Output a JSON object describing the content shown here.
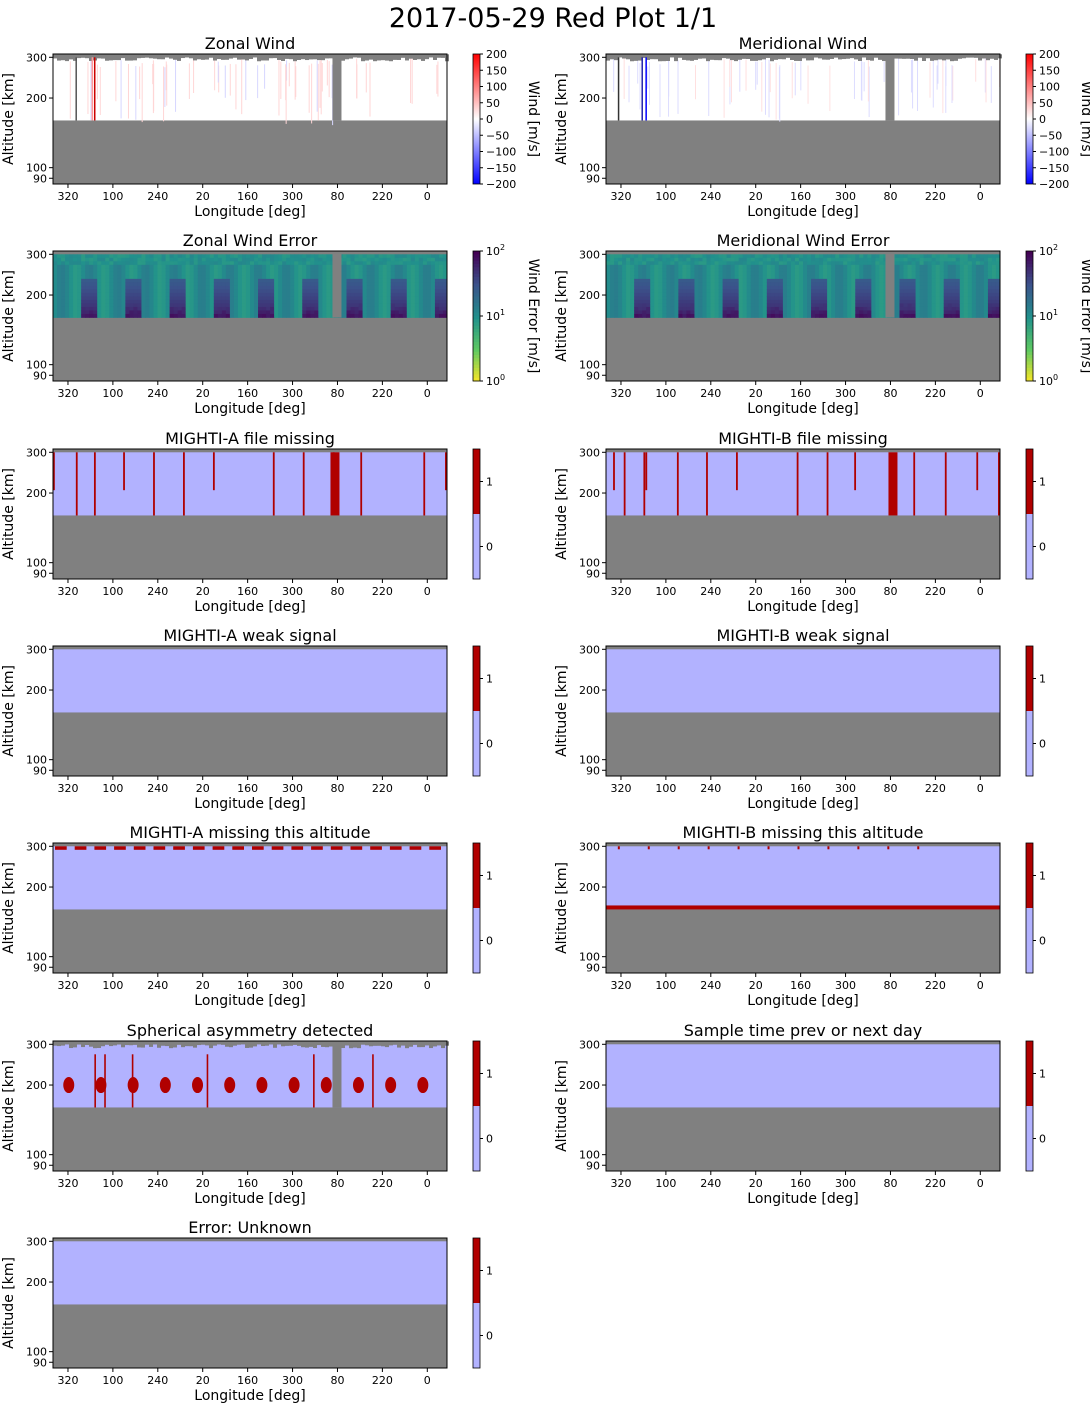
{
  "title": "2017-05-29 Red Plot 1/1",
  "colors": {
    "background_gray": "#808080",
    "flag_zero": "#b2b2ff",
    "flag_one": "#b00000",
    "wind_positive": "#ff0000",
    "wind_negative": "#0000ff",
    "wind_zero": "#ffffff"
  },
  "chart_data": [
    {
      "type": "heatmap",
      "title": "Zonal Wind",
      "xlabel": "Longitude [deg]",
      "ylabel": "Altitude [km]",
      "x_ticks": [
        "320",
        "100",
        "240",
        "20",
        "160",
        "300",
        "80",
        "220",
        "0"
      ],
      "y_ticks": [
        "300",
        "200",
        "100",
        "90"
      ],
      "ylim": [
        85,
        310
      ],
      "yscale": "log",
      "colorbar": {
        "label": "Wind [m/s]",
        "ticks": [
          "200",
          "150",
          "100",
          "50",
          "0",
          "−50",
          "−100",
          "−150",
          "−200"
        ],
        "range": [
          -200,
          200
        ],
        "colormap": "bwr"
      },
      "data_altitude_range": [
        160,
        300
      ],
      "data_gap_longitude": 80
    },
    {
      "type": "heatmap",
      "title": "Meridional Wind",
      "xlabel": "Longitude [deg]",
      "ylabel": "Altitude [km]",
      "x_ticks": [
        "320",
        "100",
        "240",
        "20",
        "160",
        "300",
        "80",
        "220",
        "0"
      ],
      "y_ticks": [
        "300",
        "200",
        "100",
        "90"
      ],
      "ylim": [
        85,
        310
      ],
      "yscale": "log",
      "colorbar": {
        "label": "Wind [m/s]",
        "ticks": [
          "200",
          "150",
          "100",
          "50",
          "0",
          "−50",
          "−100",
          "−150",
          "−200"
        ],
        "range": [
          -200,
          200
        ],
        "colormap": "bwr"
      },
      "data_altitude_range": [
        160,
        300
      ],
      "data_gap_longitude": 80
    },
    {
      "type": "heatmap",
      "title": "Zonal Wind Error",
      "xlabel": "Longitude [deg]",
      "ylabel": "Altitude [km]",
      "x_ticks": [
        "320",
        "100",
        "240",
        "20",
        "160",
        "300",
        "80",
        "220",
        "0"
      ],
      "y_ticks": [
        "300",
        "200",
        "100",
        "90"
      ],
      "ylim": [
        85,
        310
      ],
      "yscale": "log",
      "colorbar": {
        "label": "Wind Error [m/s]",
        "ticks": [
          "10",
          "10",
          "10"
        ],
        "tick_exponents": [
          "2",
          "1",
          "0"
        ],
        "range": [
          1,
          100
        ],
        "scale": "log",
        "colormap": "viridis_r"
      },
      "data_altitude_range": [
        160,
        300
      ],
      "data_gap_longitude": 80
    },
    {
      "type": "heatmap",
      "title": "Meridional Wind Error",
      "xlabel": "Longitude [deg]",
      "ylabel": "Altitude [km]",
      "x_ticks": [
        "320",
        "100",
        "240",
        "20",
        "160",
        "300",
        "80",
        "220",
        "0"
      ],
      "y_ticks": [
        "300",
        "200",
        "100",
        "90"
      ],
      "ylim": [
        85,
        310
      ],
      "yscale": "log",
      "colorbar": {
        "label": "Wind Error [m/s]",
        "ticks": [
          "10",
          "10",
          "10"
        ],
        "tick_exponents": [
          "2",
          "1",
          "0"
        ],
        "range": [
          1,
          100
        ],
        "scale": "log",
        "colormap": "viridis_r"
      },
      "data_altitude_range": [
        160,
        300
      ],
      "data_gap_longitude": 80
    },
    {
      "type": "heatmap",
      "title": "MIGHTI-A file missing",
      "xlabel": "Longitude [deg]",
      "ylabel": "Altitude [km]",
      "x_ticks": [
        "320",
        "100",
        "240",
        "20",
        "160",
        "300",
        "80",
        "220",
        "0"
      ],
      "y_ticks": [
        "300",
        "200",
        "100",
        "90"
      ],
      "ylim": [
        85,
        310
      ],
      "yscale": "log",
      "colorbar": {
        "ticks": [
          "1",
          "0"
        ],
        "range": [
          0,
          1
        ],
        "colormap": "binary"
      },
      "data_altitude_range": [
        160,
        300
      ],
      "flagged_longitude": 80
    },
    {
      "type": "heatmap",
      "title": "MIGHTI-B file missing",
      "xlabel": "Longitude [deg]",
      "ylabel": "Altitude [km]",
      "x_ticks": [
        "320",
        "100",
        "240",
        "20",
        "160",
        "300",
        "80",
        "220",
        "0"
      ],
      "y_ticks": [
        "300",
        "200",
        "100",
        "90"
      ],
      "ylim": [
        85,
        310
      ],
      "yscale": "log",
      "colorbar": {
        "ticks": [
          "1",
          "0"
        ],
        "range": [
          0,
          1
        ],
        "colormap": "binary"
      },
      "data_altitude_range": [
        160,
        300
      ],
      "flagged_longitude": 80
    },
    {
      "type": "heatmap",
      "title": "MIGHTI-A weak signal",
      "xlabel": "Longitude [deg]",
      "ylabel": "Altitude [km]",
      "x_ticks": [
        "320",
        "100",
        "240",
        "20",
        "160",
        "300",
        "80",
        "220",
        "0"
      ],
      "y_ticks": [
        "300",
        "200",
        "100",
        "90"
      ],
      "ylim": [
        85,
        310
      ],
      "yscale": "log",
      "colorbar": {
        "ticks": [
          "1",
          "0"
        ],
        "range": [
          0,
          1
        ],
        "colormap": "binary"
      },
      "data_altitude_range": [
        160,
        300
      ],
      "flag_value": 0
    },
    {
      "type": "heatmap",
      "title": "MIGHTI-B weak signal",
      "xlabel": "Longitude [deg]",
      "ylabel": "Altitude [km]",
      "x_ticks": [
        "320",
        "100",
        "240",
        "20",
        "160",
        "300",
        "80",
        "220",
        "0"
      ],
      "y_ticks": [
        "300",
        "200",
        "100",
        "90"
      ],
      "ylim": [
        85,
        310
      ],
      "yscale": "log",
      "colorbar": {
        "ticks": [
          "1",
          "0"
        ],
        "range": [
          0,
          1
        ],
        "colormap": "binary"
      },
      "data_altitude_range": [
        160,
        300
      ],
      "flag_value": 0
    },
    {
      "type": "heatmap",
      "title": "MIGHTI-A missing this altitude",
      "xlabel": "Longitude [deg]",
      "ylabel": "Altitude [km]",
      "x_ticks": [
        "320",
        "100",
        "240",
        "20",
        "160",
        "300",
        "80",
        "220",
        "0"
      ],
      "y_ticks": [
        "300",
        "200",
        "100",
        "90"
      ],
      "ylim": [
        85,
        310
      ],
      "yscale": "log",
      "colorbar": {
        "ticks": [
          "1",
          "0"
        ],
        "range": [
          0,
          1
        ],
        "colormap": "binary"
      },
      "data_altitude_range": [
        160,
        300
      ],
      "flagged_altitude": 300
    },
    {
      "type": "heatmap",
      "title": "MIGHTI-B missing this altitude",
      "xlabel": "Longitude [deg]",
      "ylabel": "Altitude [km]",
      "x_ticks": [
        "320",
        "100",
        "240",
        "20",
        "160",
        "300",
        "80",
        "220",
        "0"
      ],
      "y_ticks": [
        "300",
        "200",
        "100",
        "90"
      ],
      "ylim": [
        85,
        310
      ],
      "yscale": "log",
      "colorbar": {
        "ticks": [
          "1",
          "0"
        ],
        "range": [
          0,
          1
        ],
        "colormap": "binary"
      },
      "data_altitude_range": [
        160,
        300
      ],
      "flagged_altitude": 160
    },
    {
      "type": "heatmap",
      "title": "Spherical asymmetry detected",
      "xlabel": "Longitude [deg]",
      "ylabel": "Altitude [km]",
      "x_ticks": [
        "320",
        "100",
        "240",
        "20",
        "160",
        "300",
        "80",
        "220",
        "0"
      ],
      "y_ticks": [
        "300",
        "200",
        "100",
        "90"
      ],
      "ylim": [
        85,
        310
      ],
      "yscale": "log",
      "colorbar": {
        "ticks": [
          "1",
          "0"
        ],
        "range": [
          0,
          1
        ],
        "colormap": "binary"
      },
      "data_altitude_range": [
        160,
        300
      ],
      "flagged_altitude": 200
    },
    {
      "type": "heatmap",
      "title": "Sample time prev or next day",
      "xlabel": "Longitude [deg]",
      "ylabel": "Altitude [km]",
      "x_ticks": [
        "320",
        "100",
        "240",
        "20",
        "160",
        "300",
        "80",
        "220",
        "0"
      ],
      "y_ticks": [
        "300",
        "200",
        "100",
        "90"
      ],
      "ylim": [
        85,
        310
      ],
      "yscale": "log",
      "colorbar": {
        "ticks": [
          "1",
          "0"
        ],
        "range": [
          0,
          1
        ],
        "colormap": "binary"
      },
      "data_altitude_range": [
        160,
        300
      ],
      "flag_value": 0
    },
    {
      "type": "heatmap",
      "title": "Error: Unknown",
      "xlabel": "Longitude [deg]",
      "ylabel": "Altitude [km]",
      "x_ticks": [
        "320",
        "100",
        "240",
        "20",
        "160",
        "300",
        "80",
        "220",
        "0"
      ],
      "y_ticks": [
        "300",
        "200",
        "100",
        "90"
      ],
      "ylim": [
        85,
        310
      ],
      "yscale": "log",
      "colorbar": {
        "ticks": [
          "1",
          "0"
        ],
        "range": [
          0,
          1
        ],
        "colormap": "binary"
      },
      "data_altitude_range": [
        160,
        300
      ],
      "flag_value": 0
    }
  ]
}
